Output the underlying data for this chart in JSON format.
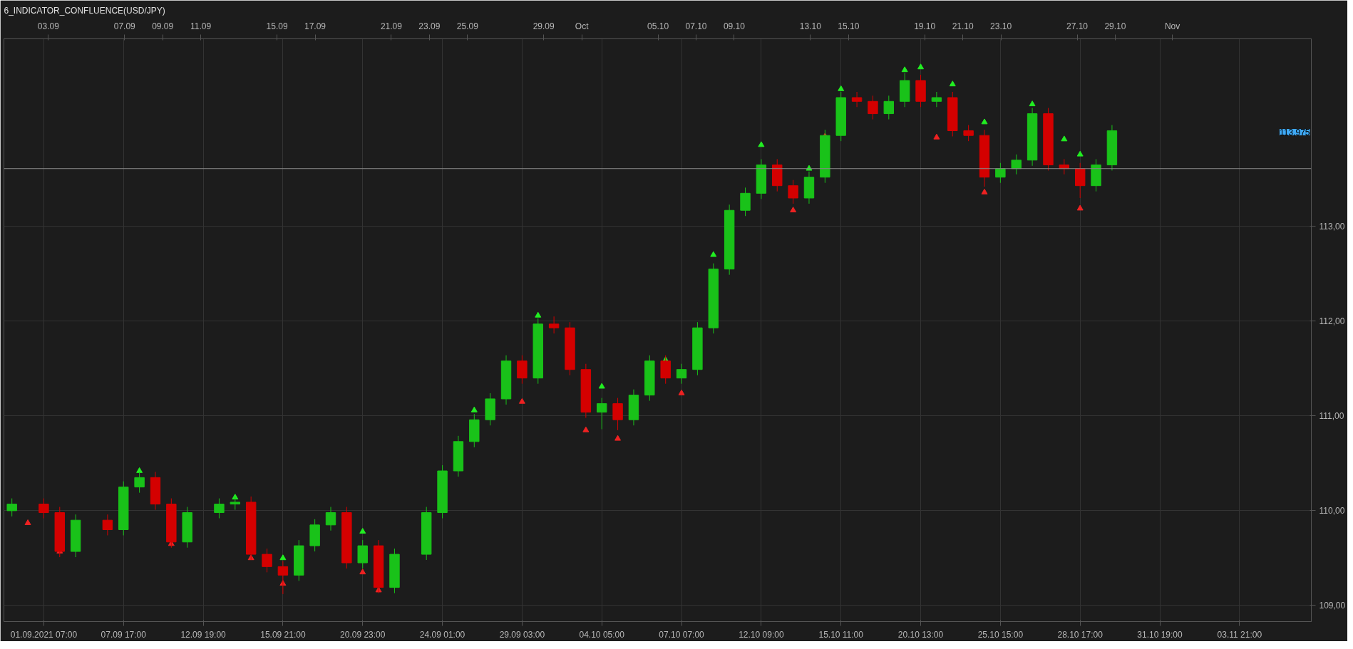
{
  "chart_data": {
    "type": "candlestick",
    "title": "6_INDICATOR_CONFLUENCE(USD/JPY)",
    "categories": [
      null,
      null,
      "01.09.2021 07:00",
      null,
      null,
      null,
      null,
      "07.09 17:00",
      null,
      null,
      null,
      null,
      "12.09 19:00",
      null,
      null,
      null,
      null,
      "15.09 21:00",
      null,
      null,
      null,
      null,
      "20.09 23:00",
      null,
      null,
      null,
      null,
      "24.09 01:00",
      null,
      null,
      null,
      null,
      "29.09 03:00",
      null,
      null,
      null,
      null,
      "04.10 05:00",
      null,
      null,
      null,
      null,
      "07.10 07:00",
      null,
      null,
      null,
      null,
      "12.10 09:00",
      null,
      null,
      null,
      null,
      "15.10 11:00",
      null,
      null,
      null,
      null,
      "20.10 13:00",
      null,
      null,
      null,
      null,
      "25.10 15:00",
      null,
      null,
      null,
      null,
      "28.10 17:00",
      null,
      null,
      null,
      null,
      "31.10 19:00",
      null,
      null,
      null,
      null,
      "03.11 21:00",
      null,
      null,
      null,
      null
    ],
    "x2lim": [
      "2021-08-31T16:00",
      "2021-11-08T07:00"
    ],
    "x2ticks": [
      {
        "value": "2021-09-03",
        "label": "03.09"
      },
      {
        "value": "2021-09-07",
        "label": "07.09"
      },
      {
        "value": "2021-09-09",
        "label": "09.09"
      },
      {
        "value": "2021-09-11",
        "label": "11.09"
      },
      {
        "value": "2021-09-15",
        "label": "15.09"
      },
      {
        "value": "2021-09-17",
        "label": "17.09"
      },
      {
        "value": "2021-09-21",
        "label": "21.09"
      },
      {
        "value": "2021-09-23",
        "label": "23.09"
      },
      {
        "value": "2021-09-25",
        "label": "25.09"
      },
      {
        "value": "2021-09-29",
        "label": "29.09"
      },
      {
        "value": "2021-10-01",
        "label": "Oct"
      },
      {
        "value": "2021-10-05",
        "label": "05.10"
      },
      {
        "value": "2021-10-07",
        "label": "07.10"
      },
      {
        "value": "2021-10-09",
        "label": "09.10"
      },
      {
        "value": "2021-10-13",
        "label": "13.10"
      },
      {
        "value": "2021-10-15",
        "label": "15.10"
      },
      {
        "value": "2021-10-19",
        "label": "19.10"
      },
      {
        "value": "2021-10-21",
        "label": "21.10"
      },
      {
        "value": "2021-10-23",
        "label": "23.10"
      },
      {
        "value": "2021-10-27",
        "label": "27.10"
      },
      {
        "value": "2021-10-29",
        "label": "29.10"
      },
      {
        "value": "2021-11-01",
        "label": "Nov"
      }
    ],
    "ohlc": [
      [
        110.0,
        110.13,
        109.94,
        110.07
      ],
      null,
      [
        110.07,
        110.13,
        109.92,
        109.98
      ],
      [
        109.98,
        110.04,
        109.51,
        109.57
      ],
      [
        109.57,
        109.96,
        109.51,
        109.9
      ],
      null,
      [
        109.9,
        109.96,
        109.74,
        109.8
      ],
      [
        109.8,
        110.31,
        109.74,
        110.25
      ],
      [
        110.25,
        110.41,
        110.19,
        110.35
      ],
      [
        110.35,
        110.41,
        110.01,
        110.07
      ],
      [
        110.07,
        110.13,
        109.61,
        109.67
      ],
      [
        109.67,
        110.04,
        109.61,
        109.98
      ],
      null,
      [
        109.98,
        110.13,
        109.92,
        110.07
      ],
      [
        110.07,
        110.15,
        110.01,
        110.09
      ],
      [
        110.09,
        110.15,
        109.48,
        109.54
      ],
      [
        109.54,
        109.6,
        109.35,
        109.41
      ],
      [
        109.41,
        109.47,
        109.12,
        109.32
      ],
      [
        109.32,
        109.69,
        109.26,
        109.63
      ],
      [
        109.63,
        109.91,
        109.57,
        109.85
      ],
      [
        109.85,
        110.04,
        109.79,
        109.98
      ],
      [
        109.98,
        110.04,
        109.39,
        109.45
      ],
      [
        109.45,
        109.69,
        109.39,
        109.63
      ],
      [
        109.63,
        109.69,
        109.13,
        109.19
      ],
      [
        109.19,
        109.6,
        109.13,
        109.54
      ],
      null,
      [
        109.54,
        110.04,
        109.48,
        109.98
      ],
      [
        109.98,
        110.48,
        109.92,
        110.42
      ],
      [
        110.42,
        110.79,
        110.36,
        110.73
      ],
      [
        110.73,
        111.02,
        110.67,
        110.96
      ],
      [
        110.96,
        111.24,
        110.9,
        111.18
      ],
      [
        111.18,
        111.64,
        111.12,
        111.58
      ],
      [
        111.58,
        111.64,
        111.34,
        111.4
      ],
      [
        111.4,
        112.03,
        111.34,
        111.97
      ],
      [
        111.97,
        112.05,
        111.87,
        111.93
      ],
      [
        111.93,
        111.99,
        111.43,
        111.49
      ],
      [
        111.49,
        111.55,
        110.98,
        111.04
      ],
      [
        111.04,
        111.19,
        110.86,
        111.13
      ],
      [
        111.13,
        111.19,
        110.85,
        110.96
      ],
      [
        110.96,
        111.28,
        110.9,
        111.22
      ],
      [
        111.22,
        111.64,
        111.16,
        111.58
      ],
      [
        111.58,
        111.64,
        111.34,
        111.4
      ],
      [
        111.4,
        111.55,
        111.34,
        111.49
      ],
      [
        111.49,
        111.99,
        111.43,
        111.93
      ],
      [
        111.93,
        112.61,
        111.87,
        112.55
      ],
      [
        112.55,
        113.23,
        112.49,
        113.17
      ],
      [
        113.17,
        113.41,
        113.11,
        113.35
      ],
      [
        113.35,
        113.71,
        113.29,
        113.65
      ],
      [
        113.65,
        113.71,
        113.37,
        113.43
      ],
      [
        113.43,
        113.49,
        113.24,
        113.3
      ],
      [
        113.3,
        113.58,
        113.24,
        113.52
      ],
      [
        113.52,
        114.02,
        113.46,
        113.96
      ],
      [
        113.96,
        114.42,
        113.9,
        114.36
      ],
      [
        114.36,
        114.42,
        114.26,
        114.32
      ],
      [
        114.32,
        114.38,
        114.13,
        114.19
      ],
      [
        114.19,
        114.38,
        114.13,
        114.32
      ],
      [
        114.32,
        114.62,
        114.26,
        114.54
      ],
      [
        114.54,
        114.6,
        114.26,
        114.32
      ],
      [
        114.32,
        114.42,
        114.26,
        114.36
      ],
      [
        114.36,
        114.42,
        113.95,
        114.01
      ],
      [
        114.01,
        114.07,
        113.9,
        113.96
      ],
      [
        113.96,
        114.02,
        113.42,
        113.52
      ],
      [
        113.52,
        113.67,
        113.46,
        113.61
      ],
      [
        113.61,
        113.76,
        113.55,
        113.7
      ],
      [
        113.7,
        114.25,
        113.64,
        114.19
      ],
      [
        114.19,
        114.25,
        113.59,
        113.65
      ],
      [
        113.65,
        113.71,
        113.55,
        113.61
      ],
      [
        113.61,
        113.67,
        113.3,
        113.43
      ],
      [
        113.43,
        113.71,
        113.37,
        113.65
      ],
      [
        113.65,
        114.07,
        113.59,
        114.01
      ],
      null,
      null,
      null,
      null,
      null,
      null,
      null,
      null,
      null,
      null,
      null,
      null
    ],
    "colors": [
      "#19c219",
      null,
      "#d40000",
      "#d40000",
      "#19c219",
      null,
      "#d40000",
      "#19c219",
      "#19c219",
      "#d40000",
      "#d40000",
      "#19c219",
      null,
      "#19c219",
      "#19c219",
      "#d40000",
      "#d40000",
      "#d40000",
      "#19c219",
      "#19c219",
      "#19c219",
      "#d40000",
      "#19c219",
      "#d40000",
      "#19c219",
      null,
      "#19c219",
      "#19c219",
      "#19c219",
      "#19c219",
      "#19c219",
      "#19c219",
      "#d40000",
      "#19c219",
      "#d40000",
      "#d40000",
      "#d40000",
      "#19c219",
      "#d40000",
      "#19c219",
      "#19c219",
      "#d40000",
      "#19c219",
      "#19c219",
      "#19c219",
      "#19c219",
      "#19c219",
      "#19c219",
      "#d40000",
      "#d40000",
      "#19c219",
      "#19c219",
      "#19c219",
      "#d40000",
      "#d40000",
      "#19c219",
      "#19c219",
      "#d40000",
      "#19c219",
      "#d40000",
      "#d40000",
      "#d40000",
      "#19c219",
      "#19c219",
      "#19c219",
      "#d40000",
      "#d40000",
      "#d40000",
      "#19c219",
      "#19c219",
      null,
      null,
      null,
      null,
      null,
      null,
      null,
      null,
      null,
      null,
      null,
      null
    ],
    "series": [
      {
        "type": "scatter",
        "color": "#22ee22",
        "marker": "triangle",
        "values": [
          null,
          null,
          null,
          null,
          null,
          null,
          null,
          null,
          110.42,
          null,
          null,
          null,
          null,
          null,
          110.14,
          null,
          null,
          109.5,
          null,
          null,
          null,
          null,
          109.78,
          null,
          null,
          null,
          null,
          null,
          null,
          111.06,
          null,
          null,
          null,
          112.06,
          null,
          null,
          null,
          111.31,
          null,
          null,
          null,
          111.59,
          null,
          null,
          112.7,
          null,
          null,
          113.86,
          null,
          null,
          113.61,
          null,
          114.45,
          null,
          null,
          null,
          114.65,
          114.68,
          null,
          114.5,
          null,
          114.1,
          null,
          null,
          114.29,
          null,
          113.92,
          113.76,
          null,
          null,
          null,
          null,
          null,
          null,
          null,
          null,
          null,
          null,
          null,
          null,
          null,
          null
        ]
      },
      {
        "type": "scatter",
        "color": "#ee2222",
        "marker": "triangle",
        "values": [
          null,
          109.87,
          null,
          109.57,
          null,
          null,
          null,
          null,
          null,
          null,
          109.65,
          null,
          null,
          null,
          null,
          109.5,
          null,
          109.23,
          null,
          null,
          null,
          null,
          109.35,
          109.16,
          null,
          null,
          null,
          null,
          null,
          null,
          null,
          null,
          111.15,
          null,
          null,
          null,
          110.85,
          null,
          110.76,
          null,
          null,
          null,
          111.24,
          null,
          null,
          null,
          null,
          null,
          null,
          113.17,
          null,
          113.95,
          null,
          null,
          null,
          null,
          null,
          null,
          113.94,
          null,
          null,
          113.36,
          null,
          null,
          null,
          null,
          null,
          113.19,
          null,
          null,
          null,
          null,
          null,
          null,
          null,
          null,
          null,
          null,
          null,
          null,
          null,
          null
        ]
      }
    ],
    "ylim": [
      108.83,
      114.98
    ],
    "yticks": [
      {
        "value": 109,
        "label": "109,00"
      },
      {
        "value": 110,
        "label": "110,00"
      },
      {
        "value": 111,
        "label": "111,00"
      },
      {
        "value": 112,
        "label": "112,00"
      },
      {
        "value": 113,
        "label": "113,00"
      }
    ],
    "annotations": [
      "113,975"
    ],
    "ref_lines": [
      {
        "axis": "y",
        "value": 113.61,
        "color": "#888888"
      }
    ],
    "grid": true
  }
}
